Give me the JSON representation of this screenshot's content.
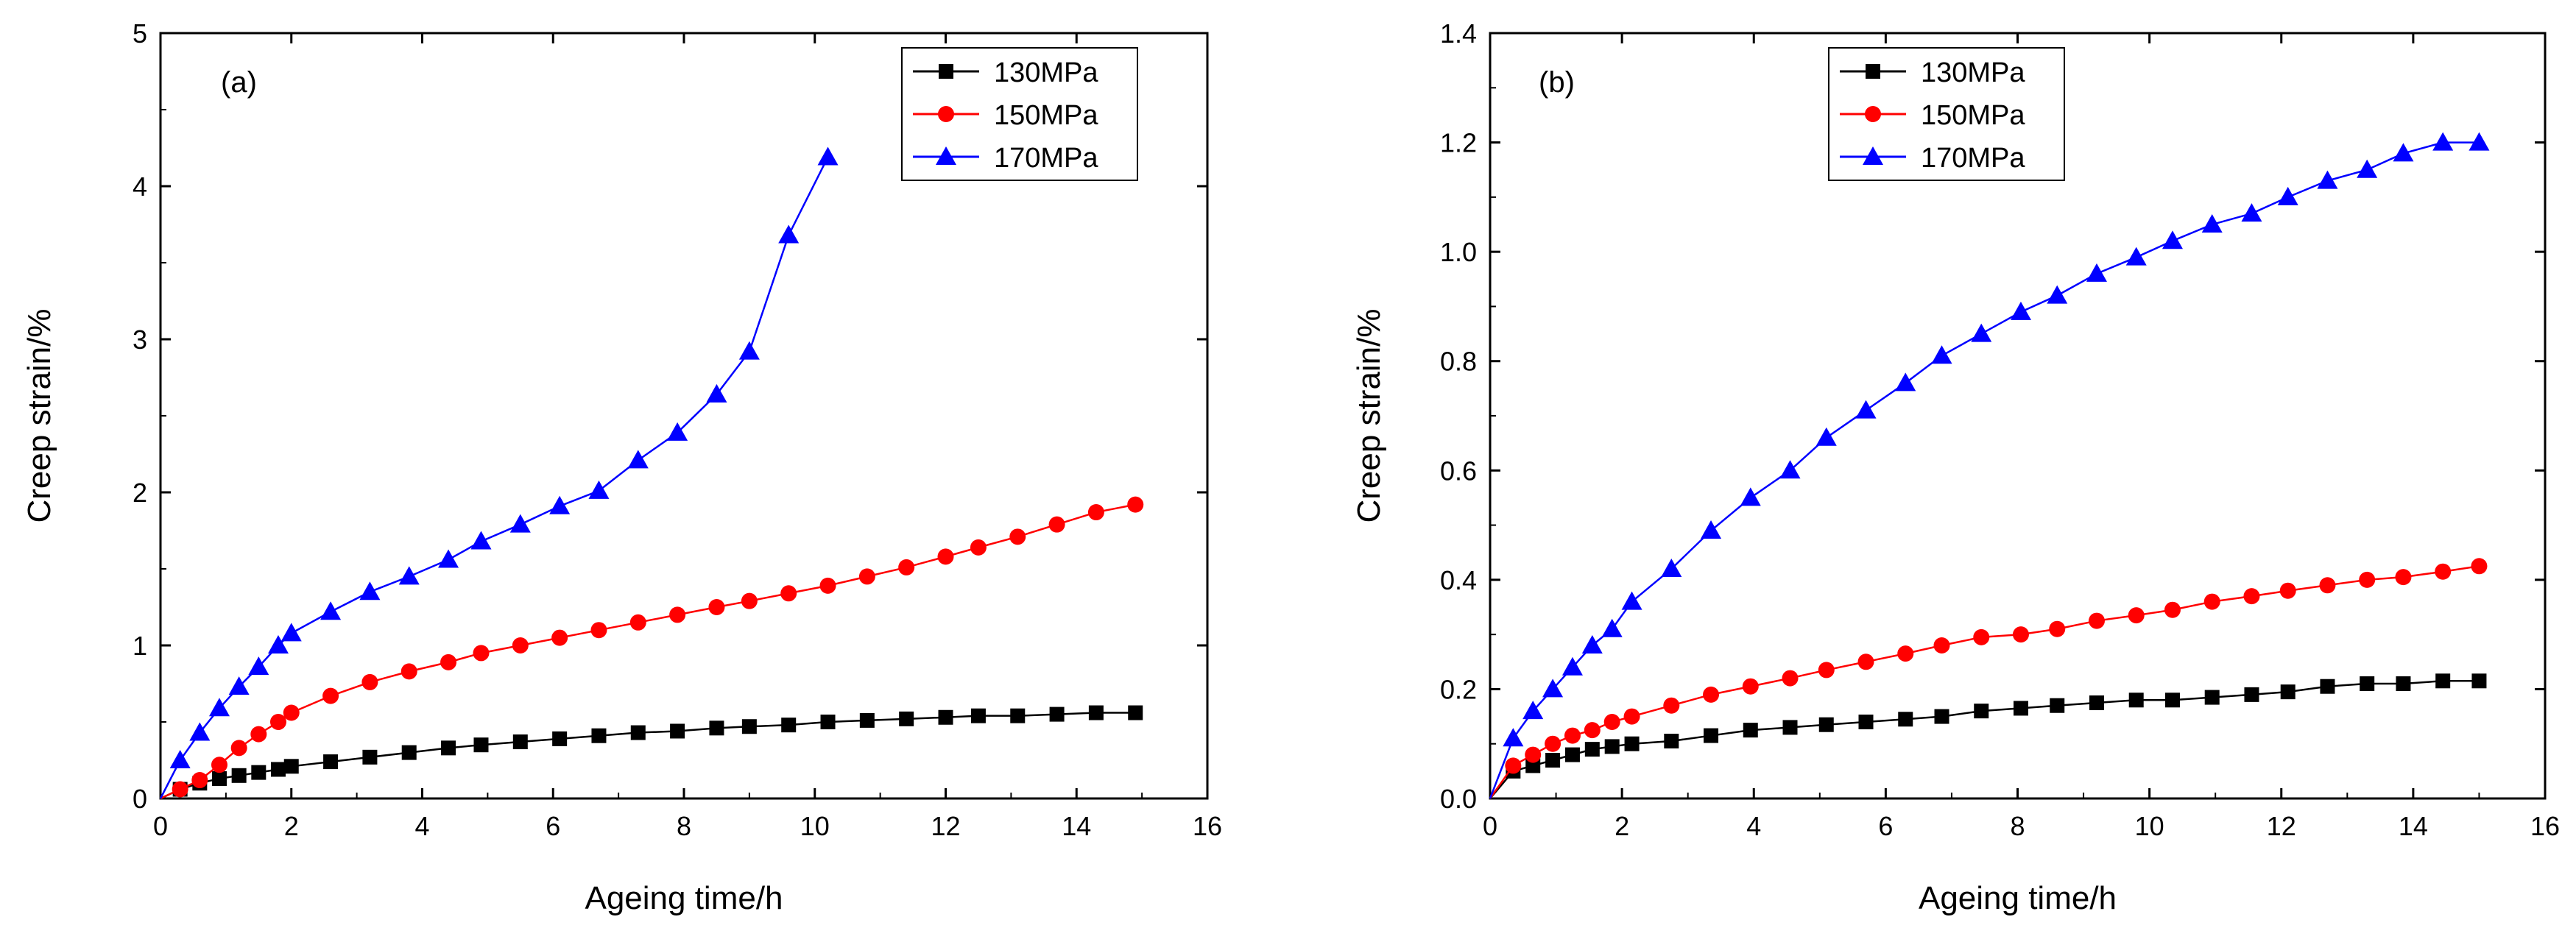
{
  "chart_data": [
    {
      "type": "line",
      "panel_label": "(a)",
      "xlabel": "Ageing time/h",
      "ylabel": "Creep strain/%",
      "xlim": [
        0,
        16
      ],
      "ylim": [
        0,
        5
      ],
      "xticks": [
        "0",
        "2",
        "4",
        "6",
        "8",
        "10",
        "12",
        "14",
        "16"
      ],
      "yticks": [
        "0",
        "1",
        "2",
        "3",
        "4",
        "5"
      ],
      "legend_position": "top-right",
      "series": [
        {
          "name": "130MPa",
          "color": "#000000",
          "marker": "square",
          "x": [
            0,
            0.3,
            0.6,
            0.9,
            1.2,
            1.5,
            1.8,
            2.0,
            2.6,
            3.2,
            3.8,
            4.4,
            4.9,
            5.5,
            6.1,
            6.7,
            7.3,
            7.9,
            8.5,
            9.0,
            9.6,
            10.2,
            10.8,
            11.4,
            12.0,
            12.5,
            13.1,
            13.7,
            14.3,
            14.9
          ],
          "y": [
            0,
            0.06,
            0.1,
            0.13,
            0.15,
            0.17,
            0.19,
            0.21,
            0.24,
            0.27,
            0.3,
            0.33,
            0.35,
            0.37,
            0.39,
            0.41,
            0.43,
            0.44,
            0.46,
            0.47,
            0.48,
            0.5,
            0.51,
            0.52,
            0.53,
            0.54,
            0.54,
            0.55,
            0.56,
            0.56
          ]
        },
        {
          "name": "150MPa",
          "color": "#ff0000",
          "marker": "circle",
          "x": [
            0,
            0.3,
            0.6,
            0.9,
            1.2,
            1.5,
            1.8,
            2.0,
            2.6,
            3.2,
            3.8,
            4.4,
            4.9,
            5.5,
            6.1,
            6.7,
            7.3,
            7.9,
            8.5,
            9.0,
            9.6,
            10.2,
            10.8,
            11.4,
            12.0,
            12.5,
            13.1,
            13.7,
            14.3,
            14.9
          ],
          "y": [
            0,
            0.06,
            0.12,
            0.22,
            0.33,
            0.42,
            0.5,
            0.56,
            0.67,
            0.76,
            0.83,
            0.89,
            0.95,
            1.0,
            1.05,
            1.1,
            1.15,
            1.2,
            1.25,
            1.29,
            1.34,
            1.39,
            1.45,
            1.51,
            1.58,
            1.64,
            1.71,
            1.79,
            1.87,
            1.92
          ]
        },
        {
          "name": "170MPa",
          "color": "#0000ff",
          "marker": "triangle",
          "x": [
            0,
            0.3,
            0.6,
            0.9,
            1.2,
            1.5,
            1.8,
            2.0,
            2.6,
            3.2,
            3.8,
            4.4,
            4.9,
            5.5,
            6.1,
            6.7,
            7.3,
            7.9,
            8.5,
            9.0,
            9.6,
            10.2
          ],
          "y": [
            0,
            0.25,
            0.43,
            0.59,
            0.73,
            0.86,
            1.0,
            1.08,
            1.22,
            1.35,
            1.45,
            1.56,
            1.68,
            1.79,
            1.91,
            2.01,
            2.21,
            2.39,
            2.64,
            2.92,
            3.68,
            4.19
          ]
        }
      ]
    },
    {
      "type": "line",
      "panel_label": "(b)",
      "xlabel": "Ageing time/h",
      "ylabel": "Creep strain/%",
      "xlim": [
        0,
        16
      ],
      "ylim": [
        0,
        1.4
      ],
      "xticks": [
        "0",
        "2",
        "4",
        "6",
        "8",
        "10",
        "12",
        "14",
        "16"
      ],
      "yticks": [
        "0.0",
        "0.2",
        "0.4",
        "0.6",
        "0.8",
        "1.0",
        "1.2",
        "1.4"
      ],
      "legend_position": "top-center",
      "series": [
        {
          "name": "130MPa",
          "color": "#000000",
          "marker": "square",
          "x": [
            0,
            0.35,
            0.65,
            0.95,
            1.25,
            1.55,
            1.85,
            2.15,
            2.75,
            3.35,
            3.95,
            4.55,
            5.1,
            5.7,
            6.3,
            6.85,
            7.45,
            8.05,
            8.6,
            9.2,
            9.8,
            10.35,
            10.95,
            11.55,
            12.1,
            12.7,
            13.3,
            13.85,
            14.45,
            15.0
          ],
          "y": [
            0,
            0.05,
            0.06,
            0.07,
            0.08,
            0.09,
            0.095,
            0.1,
            0.105,
            0.115,
            0.125,
            0.13,
            0.135,
            0.14,
            0.145,
            0.15,
            0.16,
            0.165,
            0.17,
            0.175,
            0.18,
            0.18,
            0.185,
            0.19,
            0.195,
            0.205,
            0.21,
            0.21,
            0.215,
            0.215
          ]
        },
        {
          "name": "150MPa",
          "color": "#ff0000",
          "marker": "circle",
          "x": [
            0,
            0.35,
            0.65,
            0.95,
            1.25,
            1.55,
            1.85,
            2.15,
            2.75,
            3.35,
            3.95,
            4.55,
            5.1,
            5.7,
            6.3,
            6.85,
            7.45,
            8.05,
            8.6,
            9.2,
            9.8,
            10.35,
            10.95,
            11.55,
            12.1,
            12.7,
            13.3,
            13.85,
            14.45,
            15.0
          ],
          "y": [
            0,
            0.06,
            0.08,
            0.1,
            0.115,
            0.125,
            0.14,
            0.15,
            0.17,
            0.19,
            0.205,
            0.22,
            0.235,
            0.25,
            0.265,
            0.28,
            0.295,
            0.3,
            0.31,
            0.325,
            0.335,
            0.345,
            0.36,
            0.37,
            0.38,
            0.39,
            0.4,
            0.405,
            0.415,
            0.425
          ]
        },
        {
          "name": "170MPa",
          "color": "#0000ff",
          "marker": "triangle",
          "x": [
            0,
            0.35,
            0.65,
            0.95,
            1.25,
            1.55,
            1.85,
            2.15,
            2.75,
            3.35,
            3.95,
            4.55,
            5.1,
            5.7,
            6.3,
            6.85,
            7.45,
            8.05,
            8.6,
            9.2,
            9.8,
            10.35,
            10.95,
            11.55,
            12.1,
            12.7,
            13.3,
            13.85,
            14.45,
            15.0
          ],
          "y": [
            0,
            0.11,
            0.16,
            0.2,
            0.24,
            0.28,
            0.31,
            0.36,
            0.42,
            0.49,
            0.55,
            0.6,
            0.66,
            0.71,
            0.76,
            0.81,
            0.85,
            0.89,
            0.92,
            0.96,
            0.99,
            1.02,
            1.05,
            1.07,
            1.1,
            1.13,
            1.15,
            1.18,
            1.2,
            1.2
          ]
        }
      ]
    }
  ]
}
